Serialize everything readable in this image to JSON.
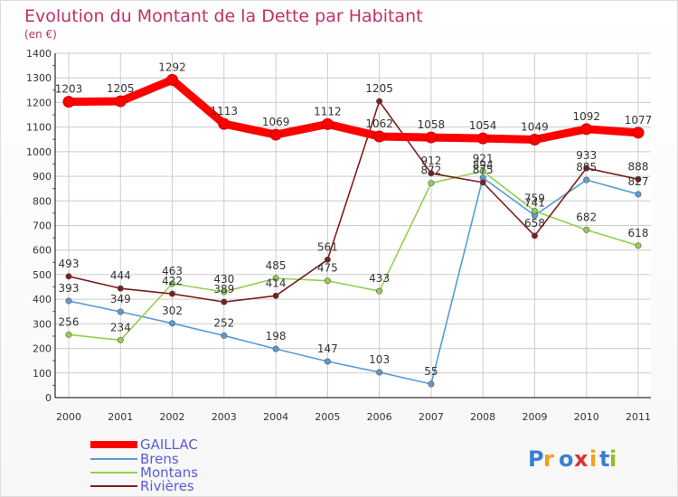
{
  "chart_data": {
    "type": "line",
    "title": "Evolution du Montant de la Dette par Habitant",
    "subtitle": "(en €)",
    "xlabel": "",
    "ylabel": "",
    "categories": [
      "2000",
      "2001",
      "2002",
      "2003",
      "2004",
      "2005",
      "2006",
      "2007",
      "2008",
      "2009",
      "2010",
      "2011"
    ],
    "ylim": [
      0,
      1400
    ],
    "yticks": [
      0,
      100,
      200,
      300,
      400,
      500,
      600,
      700,
      800,
      900,
      1000,
      1100,
      1200,
      1300,
      1400
    ],
    "grid": true,
    "legend_position": "bottom-left",
    "series": [
      {
        "name": "GAILLAC",
        "color": "#ff0000",
        "values": [
          1203,
          1205,
          1292,
          1113,
          1069,
          1112,
          1062,
          1058,
          1054,
          1049,
          1092,
          1077
        ]
      },
      {
        "name": "Brens",
        "color": "#5b9bd5",
        "values": [
          393,
          349,
          302,
          252,
          198,
          147,
          103,
          55,
          894,
          741,
          885,
          827
        ]
      },
      {
        "name": "Montans",
        "color": "#92d050",
        "values": [
          256,
          234,
          463,
          430,
          485,
          475,
          433,
          872,
          921,
          759,
          682,
          618
        ]
      },
      {
        "name": "Rivières",
        "color": "#7b1e1e",
        "values": [
          493,
          444,
          422,
          389,
          414,
          561,
          1205,
          912,
          875,
          658,
          933,
          888
        ]
      }
    ]
  },
  "logo": {
    "text": "Proxiti"
  },
  "colors": {
    "title": "#c0306a",
    "legend_text": "#5b5bd5",
    "axis": "#000000",
    "grid": "#cccccc",
    "background": "#ffffff"
  }
}
